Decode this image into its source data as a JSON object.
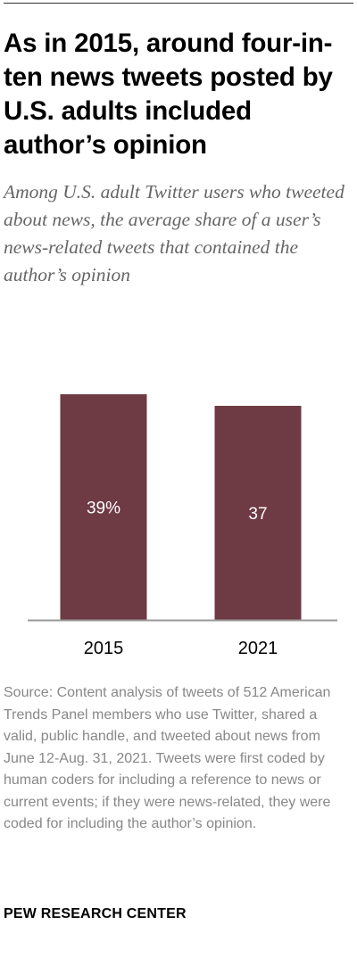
{
  "header": {
    "title": "As in 2015, around four-in-ten news tweets posted by U.S. adults included author’s opinion",
    "subtitle": "Among U.S. adult Twitter users who tweeted about news, the average share of a user’s news-related tweets that contained the author’s opinion"
  },
  "chart_data": {
    "type": "bar",
    "categories": [
      "2015",
      "2021"
    ],
    "values": [
      39,
      37
    ],
    "data_labels": [
      "39%",
      "37"
    ],
    "title": "As in 2015, around four-in-ten news tweets posted by U.S. adults included author’s opinion",
    "subtitle": "Among U.S. adult Twitter users who tweeted about news, the average share of a user’s news-related tweets that contained the author’s opinion",
    "xlabel": "",
    "ylabel": "",
    "ylim": [
      0,
      39
    ],
    "grid": false,
    "bar_color": "#6e3a44",
    "axis_color": "#999999"
  },
  "footer": {
    "source": "Source: Content analysis of tweets of 512 American Trends Panel members who use Twitter, shared a valid, public handle, and tweeted about news from June 12-Aug. 31, 2021. Tweets were first coded by human coders for including a reference to news or current events; if they were news-related, they were coded for including the author’s opinion.",
    "organization": "PEW RESEARCH CENTER"
  }
}
